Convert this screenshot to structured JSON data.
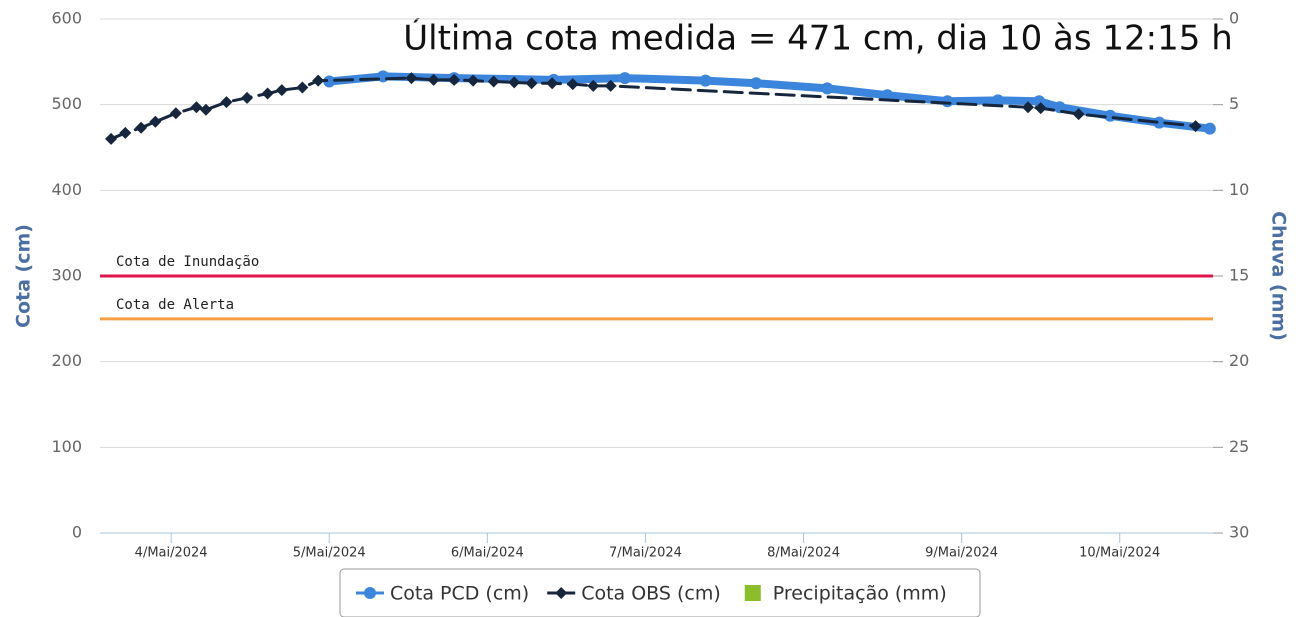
{
  "chart_data": {
    "type": "line",
    "annotation": "Última cota medida = 471 cm, dia 10 às 12:15 h",
    "y_label": "Cota (cm)",
    "y2_label": "Chuva (mm)",
    "xlim": [
      3.55,
      10.59
    ],
    "xticks": [
      {
        "value": 4,
        "label": "4/Mai/2024"
      },
      {
        "value": 5,
        "label": "5/Mai/2024"
      },
      {
        "value": 6,
        "label": "6/Mai/2024"
      },
      {
        "value": 7,
        "label": "7/Mai/2024"
      },
      {
        "value": 8,
        "label": "8/Mai/2024"
      },
      {
        "value": 9,
        "label": "9/Mai/2024"
      },
      {
        "value": 10,
        "label": "10/Mai/2024"
      }
    ],
    "ylim": [
      0,
      600
    ],
    "yticks": [
      0,
      100,
      200,
      300,
      400,
      500,
      600
    ],
    "y2lim": [
      30,
      0
    ],
    "y2ticks": [
      0,
      5,
      10,
      15,
      20,
      25,
      30
    ],
    "grid": true,
    "reference_lines": [
      {
        "label": "Cota de Inundação",
        "value": 300,
        "color": "#e0144c"
      },
      {
        "label": "Cota de Alerta",
        "value": 250,
        "color": "#f5a040"
      }
    ],
    "series": [
      {
        "name": "Cota PCD (cm)",
        "color": "#3c85dc",
        "marker": "circle",
        "x": [
          5.0,
          5.34,
          5.79,
          6.42,
          6.87,
          7.38,
          7.7,
          8.15,
          8.53,
          8.91,
          9.23,
          9.49,
          9.62,
          9.94,
          10.25,
          10.57
        ],
        "values": [
          527,
          533,
          531,
          529,
          531,
          528,
          525,
          519,
          511,
          504,
          505,
          504,
          497,
          487,
          479,
          472
        ]
      },
      {
        "name": "Cota OBS (cm)",
        "color": "#16263d",
        "marker": "diamond",
        "dashed": true,
        "x": [
          3.62,
          3.71,
          3.81,
          3.9,
          4.03,
          4.16,
          4.22,
          4.35,
          4.48,
          4.61,
          4.7,
          4.83,
          4.93,
          5.52,
          5.66,
          5.79,
          5.91,
          6.04,
          6.17,
          6.28,
          6.41,
          6.54,
          6.67,
          6.78,
          9.42,
          9.5,
          9.74,
          10.48
        ],
        "values": [
          460,
          467,
          473,
          480,
          490,
          497,
          494,
          503,
          508,
          513,
          517,
          520,
          528,
          531,
          529,
          529,
          528,
          527,
          526,
          525,
          525,
          524,
          522,
          522,
          497,
          496,
          489,
          475
        ]
      },
      {
        "name": "Precipitação (mm)",
        "color": "#8cbd2a",
        "marker": "square",
        "axis": "y2",
        "x": [],
        "values": []
      }
    ]
  }
}
